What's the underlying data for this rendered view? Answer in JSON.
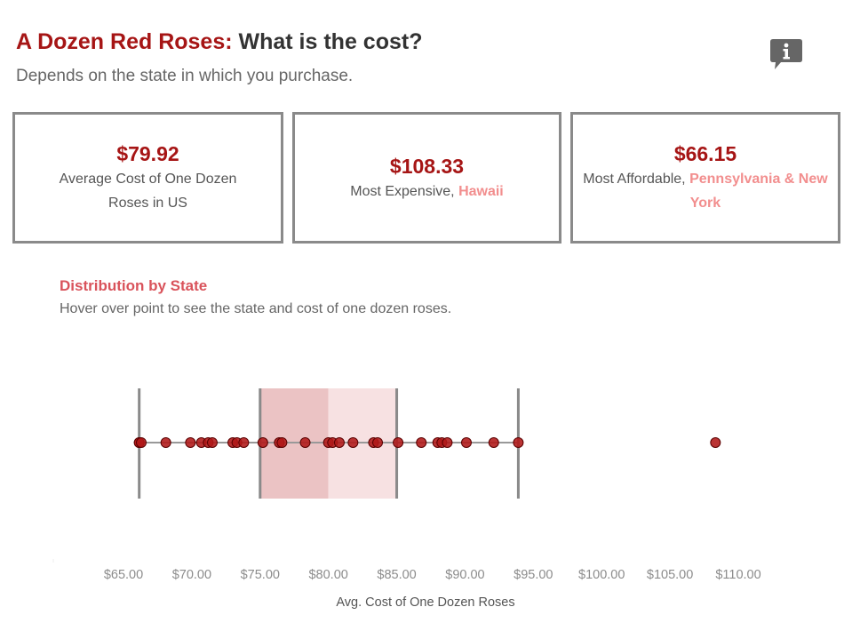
{
  "header": {
    "title_accent": "A Dozen Red Roses:",
    "title_rest": " What is the cost?",
    "subtitle": "Depends on the state in which you purchase.",
    "info_icon": "info-speech-bubble-icon"
  },
  "kpis": [
    {
      "value": "$79.92",
      "label": "Average Cost of One Dozen Roses in US",
      "highlight": ""
    },
    {
      "value": "$108.33",
      "label": "Most Expensive, ",
      "highlight": "Hawaii"
    },
    {
      "value": "$66.15",
      "label": "Most Affordable, ",
      "highlight": "Pennsylvania & New York"
    }
  ],
  "distribution": {
    "title": "Distribution by State",
    "subtitle": "Hover over point to see the state and cost of one dozen roses."
  },
  "colors": {
    "accent": "#a61515",
    "highlight": "#f28e8e",
    "section_title": "#d9535b",
    "point": "#b01818",
    "box_lower": "#ebc3c4",
    "box_upper": "#f7e1e2",
    "whisker": "#8a8a8a"
  },
  "chart_data": {
    "type": "scatter",
    "subtype": "box-and-whisker with jittered dot strip",
    "xlabel": "Avg. Cost of One Dozen Roses",
    "x_ticks": [
      "$65.00",
      "$70.00",
      "$75.00",
      "$80.00",
      "$85.00",
      "$90.00",
      "$95.00",
      "$100.00",
      "$105.00",
      "$110.00"
    ],
    "x_tick_values": [
      65,
      70,
      75,
      80,
      85,
      90,
      95,
      100,
      105,
      110
    ],
    "xlim": [
      62.5,
      112.5
    ],
    "box": {
      "whisker_low": 66.15,
      "q1": 75.0,
      "median": 80.0,
      "q3": 85.0,
      "whisker_high": 93.9
    },
    "values": [
      66.15,
      66.15,
      66.3,
      68.1,
      69.9,
      70.7,
      71.2,
      71.5,
      73.0,
      73.3,
      73.8,
      75.2,
      76.4,
      76.6,
      78.3,
      80.0,
      80.3,
      80.8,
      81.8,
      83.3,
      83.6,
      85.1,
      86.8,
      88.0,
      88.3,
      88.7,
      90.1,
      92.1,
      93.9,
      108.33
    ]
  }
}
